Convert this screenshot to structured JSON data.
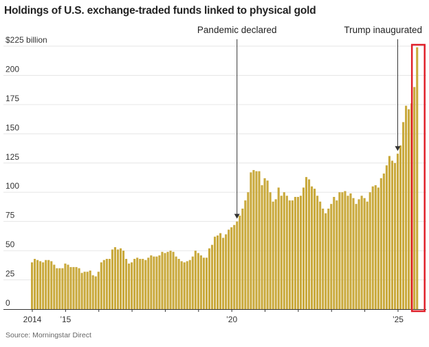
{
  "chart_data": {
    "type": "bar",
    "title": "Holdings of U.S. exchange-traded funds linked to physical gold",
    "source": "Source: Morningstar Direct",
    "ylabel": "",
    "xlabel": "",
    "y_unit_label": "$225 billion",
    "ylim": [
      0,
      225
    ],
    "yticks": [
      0,
      25,
      50,
      75,
      100,
      125,
      150,
      175,
      200,
      225
    ],
    "ytick_labels": [
      "0",
      "25",
      "50",
      "75",
      "100",
      "125",
      "150",
      "175",
      "200",
      "$225 billion"
    ],
    "grid": true,
    "frequency": "monthly",
    "start": "2014-01",
    "xtick_labels": [
      {
        "year": 2014,
        "label": "2014"
      },
      {
        "year": 2015,
        "label": "’15"
      },
      {
        "year": 2020,
        "label": "’20"
      },
      {
        "year": 2025,
        "label": "’25"
      }
    ],
    "values": [
      40,
      43,
      42,
      41,
      40,
      42,
      42,
      41,
      38,
      35,
      35,
      35,
      39,
      38,
      36,
      36,
      36,
      35,
      31,
      32,
      32,
      33,
      29,
      28,
      32,
      40,
      42,
      43,
      43,
      51,
      53,
      51,
      52,
      50,
      43,
      39,
      40,
      43,
      44,
      43,
      43,
      42,
      44,
      46,
      45,
      45,
      46,
      49,
      48,
      49,
      50,
      49,
      45,
      43,
      41,
      40,
      41,
      42,
      45,
      50,
      48,
      46,
      44,
      44,
      52,
      55,
      62,
      63,
      65,
      61,
      64,
      68,
      70,
      72,
      75,
      80,
      86,
      93,
      100,
      117,
      119,
      118,
      118,
      106,
      112,
      110,
      100,
      92,
      94,
      104,
      97,
      100,
      97,
      93,
      93,
      96,
      96,
      97,
      104,
      113,
      111,
      105,
      103,
      97,
      92,
      86,
      82,
      86,
      90,
      96,
      93,
      100,
      100,
      101,
      97,
      99,
      95,
      90,
      94,
      97,
      95,
      92,
      100,
      105,
      106,
      104,
      112,
      116,
      123,
      131,
      127,
      125,
      133,
      140,
      160,
      174,
      171,
      176,
      190,
      224
    ],
    "annotations": [
      {
        "text": "Pandemic declared",
        "month": "2020-03"
      },
      {
        "text": "Trump inaugurated",
        "month": "2025-01"
      }
    ],
    "highlight": {
      "months": [
        "2025-07",
        "2025-08"
      ],
      "color": "#e0202a"
    },
    "colors": {
      "bar": "#c9a93c",
      "grid": "#e6e6e6",
      "axis": "#333333"
    }
  }
}
